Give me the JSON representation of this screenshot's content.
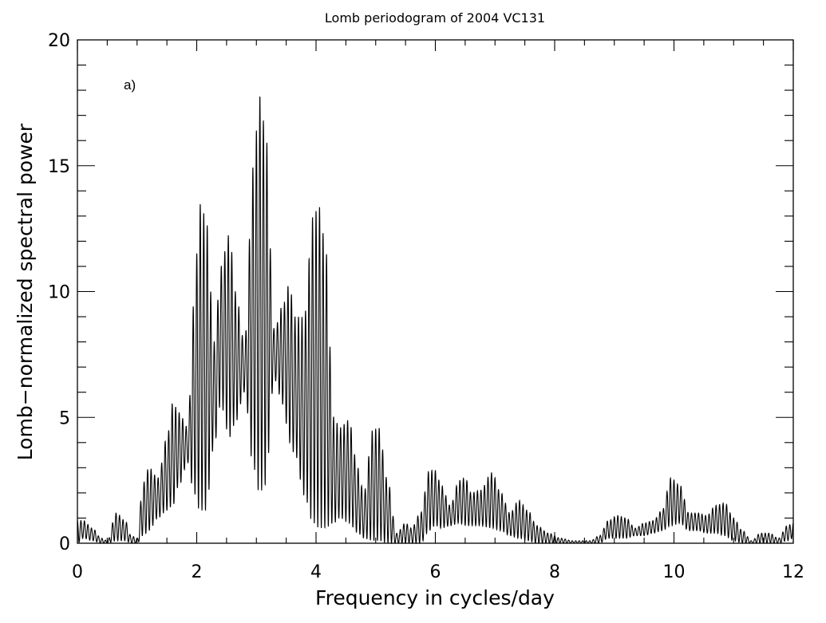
{
  "chart_data": {
    "type": "line",
    "title": "Lomb periodogram of 2004 VC131",
    "xlabel": "Frequency in cycles/day",
    "ylabel": "Lomb−normalized spectral power",
    "annotation": "a)",
    "xlim": [
      0,
      12
    ],
    "ylim": [
      0,
      20
    ],
    "xticks": [
      0,
      2,
      4,
      6,
      8,
      10,
      12
    ],
    "yticks": [
      0,
      5,
      10,
      15,
      20
    ],
    "xtick_labels": [
      "0",
      "2",
      "4",
      "6",
      "8",
      "10",
      "12"
    ],
    "ytick_labels": [
      "0",
      "5",
      "10",
      "15",
      "20"
    ],
    "x_minor_step": 0.5,
    "y_minor_step": 1,
    "grid": false,
    "line_color": "#000000",
    "oscillation_cycles_per_unit": 17,
    "series": [
      {
        "x": [
          0.0,
          0.1,
          0.25,
          0.4,
          0.5,
          0.65,
          0.8,
          0.9,
          1.0,
          1.1,
          1.2,
          1.35,
          1.5,
          1.6,
          1.7,
          1.85,
          1.95,
          2.05,
          2.15,
          2.3,
          2.4,
          2.55,
          2.65,
          2.8,
          2.95,
          3.05,
          3.15,
          3.3,
          3.45,
          3.55,
          3.65,
          3.8,
          3.95,
          4.05,
          4.15,
          4.3,
          4.4,
          4.55,
          4.7,
          4.8,
          4.95,
          5.05,
          5.2,
          5.35,
          5.5,
          5.6,
          5.75,
          5.9,
          6.0,
          6.1,
          6.25,
          6.4,
          6.5,
          6.6,
          6.75,
          6.95,
          7.1,
          7.25,
          7.4,
          7.55,
          7.7,
          7.9,
          8.1,
          8.3,
          8.45,
          8.6,
          8.75,
          8.9,
          9.05,
          9.2,
          9.35,
          9.5,
          9.65,
          9.8,
          9.95,
          10.1,
          10.25,
          10.4,
          10.55,
          10.7,
          10.85,
          11.0,
          11.15,
          11.3,
          11.45,
          11.6,
          11.75,
          11.9,
          12.0
        ],
        "upper": [
          0.9,
          0.9,
          0.6,
          0.2,
          0.1,
          1.2,
          0.9,
          0.3,
          0.2,
          2.4,
          3.0,
          2.6,
          4.2,
          5.6,
          5.2,
          4.6,
          9.5,
          13.5,
          13.0,
          8.0,
          11.0,
          12.3,
          10.0,
          8.0,
          15.0,
          17.8,
          16.5,
          8.5,
          9.5,
          10.3,
          9.0,
          9.0,
          13.0,
          13.4,
          12.0,
          5.0,
          4.6,
          4.9,
          3.0,
          2.0,
          4.5,
          4.6,
          2.5,
          0.4,
          0.8,
          0.6,
          1.2,
          2.9,
          2.9,
          2.3,
          1.5,
          2.5,
          2.6,
          2.0,
          2.1,
          2.8,
          2.0,
          1.2,
          1.7,
          1.3,
          0.7,
          0.4,
          0.2,
          0.1,
          0.1,
          0.1,
          0.3,
          0.9,
          1.1,
          1.0,
          0.6,
          0.8,
          0.9,
          1.3,
          2.6,
          2.3,
          1.2,
          1.2,
          1.1,
          1.5,
          1.6,
          1.0,
          0.5,
          0.1,
          0.4,
          0.4,
          0.2,
          0.7,
          0.8
        ],
        "lower": [
          0.0,
          0.2,
          0.1,
          0.0,
          0.0,
          0.1,
          0.1,
          0.0,
          0.0,
          0.3,
          0.5,
          1.0,
          1.3,
          1.5,
          2.3,
          3.2,
          2.0,
          1.3,
          1.3,
          4.0,
          5.5,
          4.2,
          4.8,
          6.0,
          3.0,
          2.0,
          2.3,
          6.5,
          5.5,
          4.0,
          3.5,
          1.9,
          0.8,
          0.6,
          0.6,
          0.8,
          1.0,
          0.8,
          0.4,
          0.2,
          0.1,
          0.1,
          0.0,
          0.0,
          0.0,
          0.0,
          0.0,
          0.5,
          0.7,
          0.6,
          0.7,
          0.8,
          0.7,
          0.7,
          0.7,
          0.6,
          0.5,
          0.3,
          0.2,
          0.1,
          0.0,
          0.0,
          0.0,
          0.0,
          0.0,
          0.0,
          0.0,
          0.2,
          0.2,
          0.2,
          0.3,
          0.3,
          0.4,
          0.5,
          0.7,
          0.8,
          0.5,
          0.5,
          0.4,
          0.4,
          0.3,
          0.1,
          0.0,
          0.0,
          0.0,
          0.0,
          0.0,
          0.1,
          0.2
        ]
      }
    ]
  }
}
